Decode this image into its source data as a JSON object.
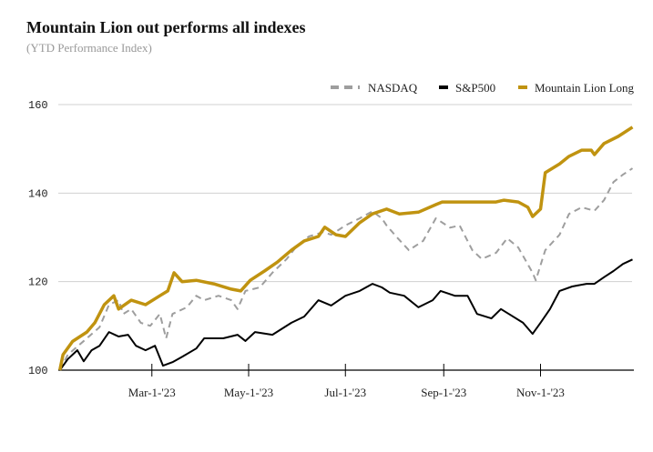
{
  "chart_data": {
    "type": "line",
    "title": "Mountain Lion out performs all indexes",
    "subtitle": "(YTD Performance Index)",
    "xlabel": "",
    "ylabel": "",
    "x_unit": "day of year 2023",
    "xlim": [
      0,
      364
    ],
    "ylim": [
      100,
      160
    ],
    "yticks": [
      100,
      120,
      140,
      160
    ],
    "ytick_labels": [
      "100",
      "120",
      "140",
      "160"
    ],
    "xticks": [
      59,
      120,
      181,
      243,
      304
    ],
    "xtick_labels": [
      "Mar-1-'23",
      "May-1-'23",
      "Jul-1-'23",
      "Sep-1-'23",
      "Nov-1-'23"
    ],
    "grid": true,
    "legend_position": "top-right",
    "series": [
      {
        "name": "NASDAQ",
        "color": "#9e9e9e",
        "dashed": true,
        "x": [
          1,
          6,
          18,
          26,
          32,
          38,
          41,
          46,
          52,
          58,
          64,
          68,
          72,
          81,
          87,
          92,
          101,
          109,
          113,
          118,
          127,
          135,
          144,
          150,
          158,
          167,
          172,
          181,
          190,
          198,
          204,
          207,
          213,
          221,
          230,
          238,
          247,
          253,
          261,
          267,
          276,
          283,
          290,
          299,
          301,
          307,
          316,
          322,
          330,
          338,
          344,
          350,
          356,
          362
        ],
        "values": [
          100,
          103.5,
          107.2,
          109.7,
          114.8,
          115.8,
          112.7,
          113.8,
          110.7,
          110,
          112.7,
          107.2,
          112.7,
          114.2,
          116.8,
          115.8,
          116.8,
          115.8,
          113.8,
          117.9,
          118.7,
          122,
          125.1,
          127.9,
          130.2,
          131.2,
          130.6,
          132.7,
          134.3,
          135.9,
          134.3,
          132.7,
          130.2,
          127.1,
          129.2,
          134.3,
          132.2,
          132.7,
          127.1,
          125.1,
          126.5,
          129.8,
          127.7,
          122,
          120.3,
          127.1,
          130.6,
          135.3,
          136.8,
          136,
          138.4,
          142.5,
          144.2,
          145.6
        ]
      },
      {
        "name": "S&P500",
        "color": "#000000",
        "dashed": false,
        "x": [
          1,
          6,
          12,
          16,
          21,
          26,
          32,
          38,
          44,
          49,
          55,
          61,
          66,
          72,
          78,
          87,
          92,
          104,
          113,
          118,
          124,
          135,
          147,
          155,
          164,
          172,
          181,
          190,
          198,
          204,
          209,
          218,
          227,
          236,
          241,
          250,
          258,
          264,
          273,
          279,
          284,
          293,
          299,
          304,
          310,
          316,
          324,
          333,
          338,
          344,
          350,
          356,
          362
        ],
        "values": [
          100,
          102.5,
          104.5,
          102,
          104.5,
          105.5,
          108.6,
          107.6,
          108,
          105.5,
          104.5,
          105.5,
          101,
          101.8,
          103,
          104.9,
          107.2,
          107.2,
          108,
          106.6,
          108.6,
          108,
          110.7,
          112.1,
          115.8,
          114.6,
          116.8,
          117.9,
          119.5,
          118.7,
          117.5,
          116.8,
          114.2,
          115.8,
          117.9,
          116.8,
          116.8,
          112.7,
          111.7,
          113.8,
          112.7,
          110.7,
          108.2,
          110.7,
          113.8,
          117.9,
          118.9,
          119.5,
          119.5,
          121,
          122.4,
          124,
          125
        ]
      },
      {
        "name": "Mountain Lion Long",
        "color": "#c09310",
        "dashed": false,
        "x": [
          1,
          3,
          9,
          18,
          23,
          29,
          35,
          38,
          46,
          55,
          64,
          69,
          73,
          78,
          87,
          98,
          109,
          115,
          121,
          130,
          138,
          147,
          155,
          164,
          168,
          175,
          181,
          190,
          198,
          207,
          215,
          227,
          238,
          242,
          276,
          281,
          290,
          296,
          299,
          304,
          307,
          316,
          322,
          330,
          336,
          338,
          344,
          353,
          362
        ],
        "values": [
          100,
          103.5,
          106.5,
          108.6,
          110.7,
          114.8,
          116.8,
          113.8,
          115.8,
          114.8,
          116.8,
          117.9,
          122,
          120,
          120.3,
          119.5,
          118.3,
          117.9,
          120.3,
          122.4,
          124.4,
          127.1,
          129.2,
          130.2,
          132.3,
          130.6,
          130.2,
          133.3,
          135.3,
          136.4,
          135.3,
          135.7,
          137.4,
          138,
          138,
          138.4,
          138,
          136.8,
          134.7,
          136.4,
          144.6,
          146.6,
          148.3,
          149.7,
          149.7,
          148.7,
          151.2,
          152.8,
          154.9
        ]
      }
    ]
  }
}
